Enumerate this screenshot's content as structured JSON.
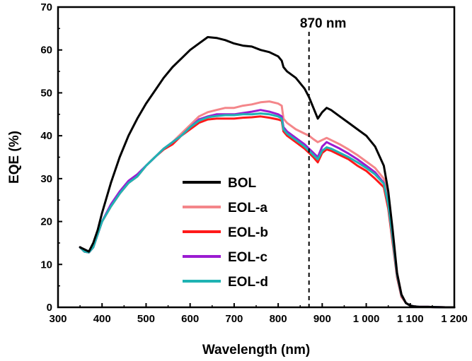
{
  "chart_data": {
    "type": "line",
    "title": "",
    "xlabel": "Wavelength (nm)",
    "ylabel": "EQE (%)",
    "xlim": [
      300,
      1200
    ],
    "ylim": [
      0,
      70
    ],
    "xticks": [
      300,
      400,
      500,
      600,
      700,
      800,
      900,
      1000,
      1100,
      1200
    ],
    "xtick_labels": [
      "300",
      "400",
      "500",
      "600",
      "700",
      "800",
      "900",
      "1 000",
      "1 100",
      "1 200"
    ],
    "yticks": [
      0,
      10,
      20,
      30,
      40,
      50,
      60,
      70
    ],
    "ytick_labels": [
      "0",
      "10",
      "20",
      "30",
      "40",
      "50",
      "60",
      "70"
    ],
    "grid": false,
    "legend_position": "lower-left",
    "annotation": {
      "label": "870 nm",
      "x": 870
    },
    "series": [
      {
        "name": "BOL",
        "color": "#000000",
        "x": [
          350,
          360,
          370,
          380,
          390,
          400,
          420,
          440,
          460,
          480,
          500,
          520,
          540,
          560,
          580,
          600,
          620,
          640,
          660,
          680,
          700,
          720,
          740,
          760,
          780,
          800,
          808,
          812,
          820,
          840,
          860,
          870,
          880,
          890,
          900,
          910,
          920,
          940,
          960,
          980,
          1000,
          1020,
          1040,
          1050,
          1060,
          1070,
          1080,
          1090,
          1100,
          1110,
          1120,
          1140,
          1160,
          1180,
          1200
        ],
        "y": [
          14,
          13.5,
          13,
          15,
          18,
          22,
          29,
          35,
          40,
          44,
          47.5,
          50.5,
          53.5,
          56,
          58,
          60,
          61.5,
          63,
          62.8,
          62.3,
          61.5,
          61,
          60.8,
          60,
          59.5,
          58.5,
          57.5,
          56,
          55,
          53.5,
          51,
          49,
          46.5,
          44,
          45.5,
          46.5,
          46,
          44.5,
          43,
          41.5,
          40,
          37.5,
          33,
          27,
          18,
          8,
          3,
          1,
          0.4,
          0.2,
          0.1,
          0.1,
          0.05,
          0,
          0
        ]
      },
      {
        "name": "EOL-a",
        "color": "#f4868a",
        "x": [
          350,
          360,
          370,
          380,
          390,
          400,
          420,
          440,
          460,
          480,
          500,
          520,
          540,
          560,
          580,
          600,
          620,
          640,
          660,
          680,
          700,
          720,
          740,
          760,
          780,
          800,
          808,
          812,
          820,
          840,
          860,
          870,
          880,
          890,
          900,
          910,
          920,
          940,
          960,
          980,
          1000,
          1020,
          1040,
          1050,
          1060,
          1070,
          1080,
          1090,
          1100,
          1110,
          1120,
          1140,
          1160,
          1180,
          1200
        ],
        "y": [
          14,
          13,
          12.8,
          14,
          17,
          20,
          23.5,
          26.5,
          29,
          30.5,
          33,
          35,
          37,
          38.5,
          40.5,
          42.5,
          44.5,
          45.5,
          46,
          46.5,
          46.5,
          47,
          47.3,
          47.8,
          48,
          47.5,
          47,
          44,
          43,
          41.5,
          40.5,
          40,
          39.2,
          38.5,
          39,
          39.5,
          39,
          38,
          36.8,
          35.5,
          34,
          32.5,
          30,
          25,
          17,
          8,
          3,
          1,
          0.4,
          0.2,
          0.1,
          0.1,
          0.05,
          0,
          0
        ]
      },
      {
        "name": "EOL-b",
        "color": "#ff1a1a",
        "x": [
          350,
          360,
          370,
          380,
          390,
          400,
          420,
          440,
          460,
          480,
          500,
          520,
          540,
          560,
          580,
          600,
          620,
          640,
          660,
          680,
          700,
          720,
          740,
          760,
          780,
          800,
          808,
          812,
          820,
          840,
          860,
          870,
          880,
          890,
          900,
          910,
          920,
          940,
          960,
          980,
          1000,
          1020,
          1040,
          1050,
          1060,
          1070,
          1080,
          1090,
          1100,
          1110,
          1120,
          1140,
          1160,
          1180,
          1200
        ],
        "y": [
          14,
          13,
          12.8,
          14,
          17,
          20,
          23.5,
          26.5,
          29,
          30.5,
          33,
          35,
          36.8,
          38,
          40,
          41.5,
          43,
          43.8,
          44,
          44,
          44,
          44.2,
          44.3,
          44.5,
          44.2,
          43.8,
          43.5,
          41,
          40,
          38.5,
          37,
          36,
          35,
          33.8,
          36,
          36.8,
          36.5,
          35.5,
          34.5,
          33,
          31.8,
          30,
          28,
          23,
          15,
          7,
          2.5,
          1,
          0.4,
          0.2,
          0.1,
          0.1,
          0.05,
          0,
          0
        ]
      },
      {
        "name": "EOL-c",
        "color": "#9b1bd1",
        "x": [
          350,
          360,
          370,
          380,
          390,
          400,
          420,
          440,
          460,
          480,
          500,
          520,
          540,
          560,
          580,
          600,
          620,
          640,
          660,
          680,
          700,
          720,
          740,
          760,
          780,
          800,
          808,
          812,
          820,
          840,
          860,
          870,
          880,
          890,
          900,
          910,
          920,
          940,
          960,
          980,
          1000,
          1020,
          1040,
          1050,
          1060,
          1070,
          1080,
          1090,
          1100,
          1110,
          1120,
          1140,
          1160,
          1180,
          1200
        ],
        "y": [
          14,
          13,
          12.8,
          14,
          17,
          20,
          24,
          27,
          29.5,
          31,
          33,
          35,
          37,
          38.5,
          40,
          42,
          43.8,
          44.5,
          45,
          45,
          45,
          45.3,
          45.6,
          46,
          45.6,
          45,
          44.5,
          42,
          41,
          39.5,
          38,
          37,
          36,
          35,
          37.5,
          38.5,
          38,
          37,
          35.8,
          34.5,
          33,
          31.5,
          29,
          24,
          16,
          7.5,
          2.8,
          1,
          0.4,
          0.2,
          0.1,
          0.1,
          0.05,
          0,
          0
        ]
      },
      {
        "name": "EOL-d",
        "color": "#1fb3b3",
        "x": [
          350,
          360,
          370,
          380,
          390,
          400,
          420,
          440,
          460,
          480,
          500,
          520,
          540,
          560,
          580,
          600,
          620,
          640,
          660,
          680,
          700,
          720,
          740,
          760,
          780,
          800,
          808,
          812,
          820,
          840,
          860,
          870,
          880,
          890,
          900,
          910,
          920,
          940,
          960,
          980,
          1000,
          1020,
          1040,
          1050,
          1060,
          1070,
          1080,
          1090,
          1100,
          1110,
          1120,
          1140,
          1160,
          1180,
          1200
        ],
        "y": [
          14,
          13,
          12.8,
          14,
          17,
          20,
          23.5,
          26.5,
          29,
          30.5,
          33,
          35,
          37,
          38.5,
          40,
          42,
          43.5,
          44.3,
          44.6,
          44.8,
          44.8,
          45,
          45,
          45.2,
          45,
          44.5,
          44,
          41.5,
          40.5,
          39,
          37.5,
          36.5,
          35.5,
          34.5,
          36.5,
          37.3,
          37,
          36,
          35,
          33.8,
          32.5,
          31,
          28.8,
          24,
          16,
          7.5,
          2.8,
          1,
          0.4,
          0.2,
          0.1,
          0.1,
          0.05,
          0,
          0
        ]
      }
    ]
  }
}
